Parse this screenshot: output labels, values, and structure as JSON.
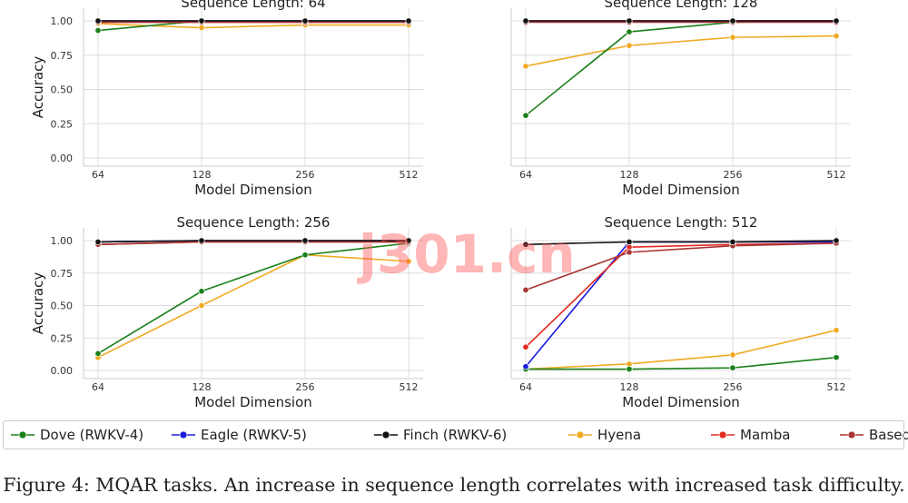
{
  "figure": {
    "caption": "Figure 4: MQAR tasks. An increase in sequence length correlates with increased task difficulty.",
    "watermark": "j301.cn"
  },
  "colors": {
    "Dove (RWKV-4)": "#1a801a",
    "Eagle (RWKV-5)": "#1a1add",
    "Finch (RWKV-6)": "#111111",
    "Hyena": "#f0aa22",
    "Mamba": "#e22a20",
    "Based": "#a83434"
  },
  "legend": [
    "Dove (RWKV-4)",
    "Eagle (RWKV-5)",
    "Finch (RWKV-6)",
    "Hyena",
    "Mamba",
    "Based"
  ],
  "chart_data": [
    {
      "type": "line",
      "title": "Sequence Length: 64",
      "xlabel": "Model Dimension",
      "ylabel": "Accuracy",
      "categories": [
        "64",
        "128",
        "256",
        "512"
      ],
      "yticks": [
        "0.00",
        "0.25",
        "0.50",
        "0.75",
        "1.00"
      ],
      "ylim": [
        0,
        1
      ],
      "grid": true,
      "series": [
        {
          "name": "Dove (RWKV-4)",
          "values": [
            0.93,
            1.0,
            1.0,
            1.0
          ]
        },
        {
          "name": "Eagle (RWKV-5)",
          "values": [
            1.0,
            1.0,
            1.0,
            1.0
          ]
        },
        {
          "name": "Finch (RWKV-6)",
          "values": [
            1.0,
            1.0,
            1.0,
            1.0
          ]
        },
        {
          "name": "Hyena",
          "values": [
            0.98,
            0.95,
            0.97,
            0.97
          ]
        },
        {
          "name": "Mamba",
          "values": [
            0.99,
            0.99,
            0.99,
            0.99
          ]
        },
        {
          "name": "Based",
          "values": [
            0.99,
            0.99,
            0.99,
            0.99
          ]
        }
      ]
    },
    {
      "type": "line",
      "title": "Sequence Length: 128",
      "xlabel": "Model Dimension",
      "ylabel": "",
      "categories": [
        "64",
        "128",
        "256",
        "512"
      ],
      "yticks": [],
      "ylim": [
        0,
        1
      ],
      "grid": true,
      "series": [
        {
          "name": "Dove (RWKV-4)",
          "values": [
            0.31,
            0.92,
            0.99,
            1.0
          ]
        },
        {
          "name": "Eagle (RWKV-5)",
          "values": [
            1.0,
            1.0,
            1.0,
            1.0
          ]
        },
        {
          "name": "Finch (RWKV-6)",
          "values": [
            1.0,
            1.0,
            1.0,
            1.0
          ]
        },
        {
          "name": "Hyena",
          "values": [
            0.67,
            0.82,
            0.88,
            0.89
          ]
        },
        {
          "name": "Mamba",
          "values": [
            1.0,
            1.0,
            1.0,
            1.0
          ]
        },
        {
          "name": "Based",
          "values": [
            0.99,
            0.99,
            0.99,
            0.99
          ]
        }
      ]
    },
    {
      "type": "line",
      "title": "Sequence Length: 256",
      "xlabel": "Model Dimension",
      "ylabel": "Accuracy",
      "categories": [
        "64",
        "128",
        "256",
        "512"
      ],
      "yticks": [
        "0.00",
        "0.25",
        "0.50",
        "0.75",
        "1.00"
      ],
      "ylim": [
        0,
        1
      ],
      "grid": true,
      "series": [
        {
          "name": "Dove (RWKV-4)",
          "values": [
            0.13,
            0.61,
            0.89,
            0.98
          ]
        },
        {
          "name": "Eagle (RWKV-5)",
          "values": [
            0.99,
            1.0,
            1.0,
            1.0
          ]
        },
        {
          "name": "Finch (RWKV-6)",
          "values": [
            0.99,
            1.0,
            1.0,
            1.0
          ]
        },
        {
          "name": "Hyena",
          "values": [
            0.1,
            0.5,
            0.89,
            0.84
          ]
        },
        {
          "name": "Mamba",
          "values": [
            0.97,
            0.99,
            0.99,
            0.99
          ]
        },
        {
          "name": "Based",
          "values": [
            0.97,
            0.99,
            0.99,
            0.99
          ]
        }
      ]
    },
    {
      "type": "line",
      "title": "Sequence Length: 512",
      "xlabel": "Model Dimension",
      "ylabel": "",
      "categories": [
        "64",
        "128",
        "256",
        "512"
      ],
      "yticks": [],
      "ylim": [
        0,
        1
      ],
      "grid": true,
      "series": [
        {
          "name": "Dove (RWKV-4)",
          "values": [
            0.01,
            0.01,
            0.02,
            0.1
          ]
        },
        {
          "name": "Eagle (RWKV-5)",
          "values": [
            0.03,
            0.99,
            0.99,
            0.99
          ]
        },
        {
          "name": "Finch (RWKV-6)",
          "values": [
            0.97,
            0.99,
            0.99,
            1.0
          ]
        },
        {
          "name": "Hyena",
          "values": [
            0.01,
            0.05,
            0.12,
            0.31
          ]
        },
        {
          "name": "Mamba",
          "values": [
            0.18,
            0.95,
            0.97,
            0.98
          ]
        },
        {
          "name": "Based",
          "values": [
            0.62,
            0.91,
            0.96,
            0.98
          ]
        }
      ]
    }
  ]
}
